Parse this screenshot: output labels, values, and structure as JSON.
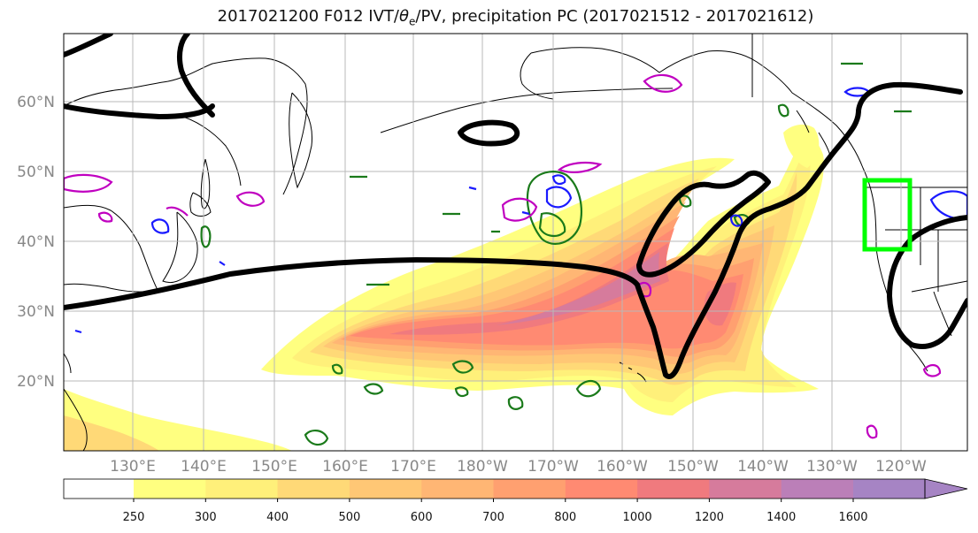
{
  "title": {
    "prefix": "2017021200 F012 IVT/",
    "theta": "θ",
    "theta_sub": "e",
    "suffix": "/PV, precipitation PC (2017021512 - 2017021612)"
  },
  "axes": {
    "lat_labels": [
      "60°N",
      "50°N",
      "40°N",
      "30°N",
      "20°N"
    ],
    "lon_labels": [
      "130°E",
      "140°E",
      "150°E",
      "160°E",
      "170°E",
      "180°W",
      "170°W",
      "160°W",
      "150°W",
      "140°W",
      "130°W",
      "120°W"
    ]
  },
  "colorbar": {
    "ticks": [
      "250",
      "300",
      "400",
      "500",
      "600",
      "700",
      "800",
      "1000",
      "1200",
      "1400",
      "1600"
    ],
    "colors": [
      "#ffff80",
      "#fff07a",
      "#ffd977",
      "#ffc775",
      "#ffb674",
      "#ffa070",
      "#ff8a72",
      "#f07a7e",
      "#d67b9c",
      "#bb7fb8",
      "#a684c4"
    ]
  },
  "legend_colors": {
    "theta_e": "#000000",
    "pv_green": "#1a7a1a",
    "pv_blue": "#1a1aff",
    "pv_magenta": "#c000c0",
    "box": "#00ff00"
  }
}
